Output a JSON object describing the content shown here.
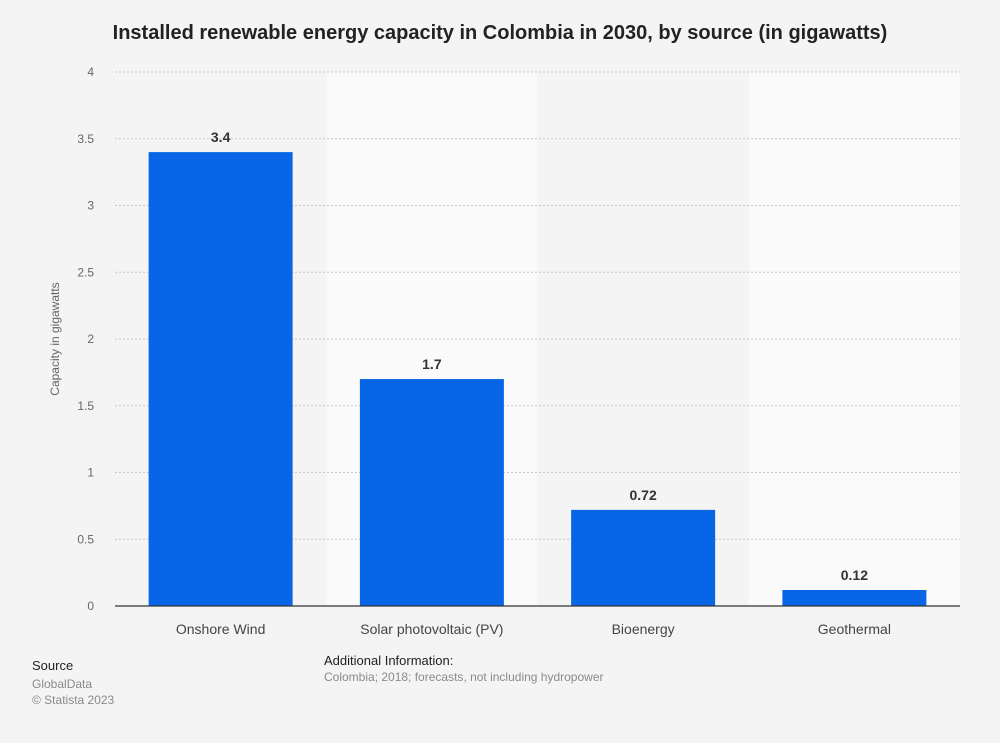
{
  "chart_data": {
    "type": "bar",
    "title": "Installed renewable energy capacity in Colombia in 2030, by source (in gigawatts)",
    "xlabel": "",
    "ylabel": "Capacity in gigawatts",
    "categories": [
      "Onshore Wind",
      "Solar photovoltaic (PV)",
      "Bioenergy",
      "Geothermal"
    ],
    "values": [
      3.4,
      1.7,
      0.72,
      0.12
    ],
    "value_labels": [
      "3.4",
      "1.7",
      "0.72",
      "0.12"
    ],
    "ylim": [
      0,
      4
    ],
    "yticks": [
      0,
      0.5,
      1,
      1.5,
      2,
      2.5,
      3,
      3.5,
      4
    ],
    "ytick_labels": [
      "0",
      "0.5",
      "1",
      "1.5",
      "2",
      "2.5",
      "3",
      "3.5",
      "4"
    ],
    "grid": true,
    "bar_color": "#0866e6"
  },
  "footer": {
    "source_heading": "Source",
    "source_name": "GlobalData",
    "copyright": "© Statista 2023",
    "info_heading": "Additional Information:",
    "info_text": "Colombia; 2018; forecasts, not including hydropower"
  }
}
